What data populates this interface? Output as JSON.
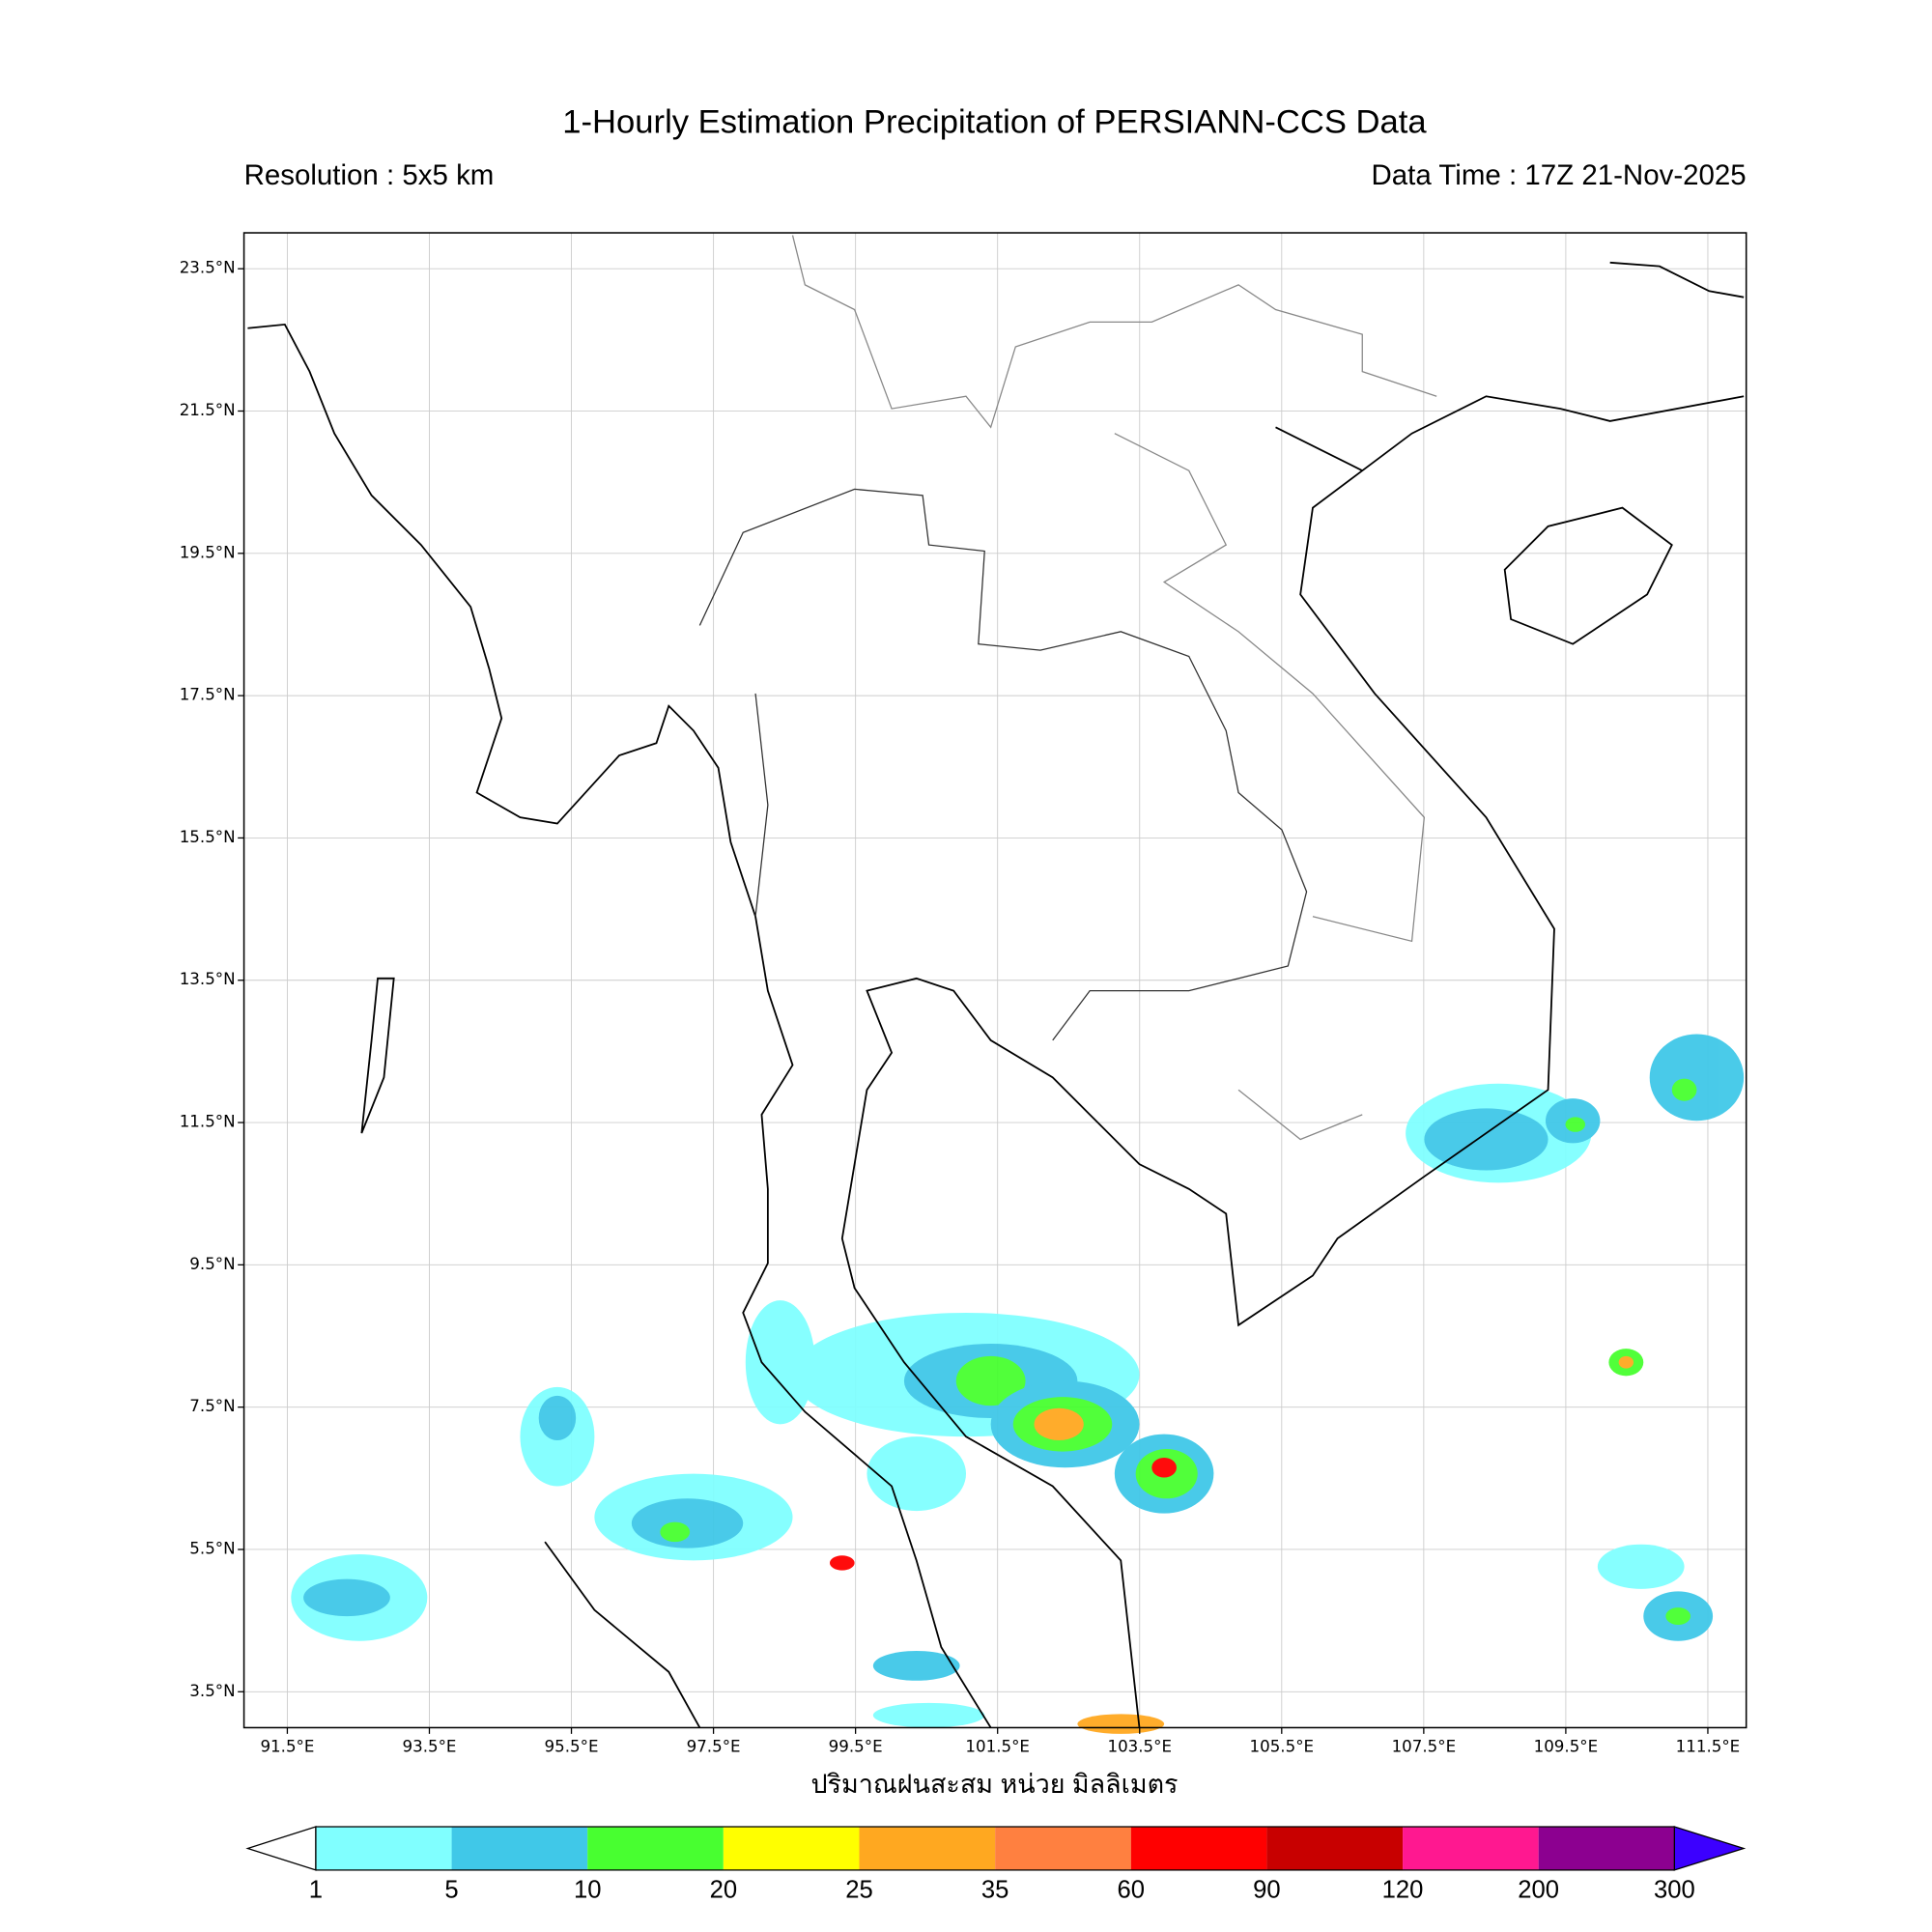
{
  "title": "1-Hourly Estimation Precipitation of PERSIANN-CCS Data",
  "resolution": "Resolution : 5x5 km",
  "data_time": "Data Time : 17Z 21-Nov-2025",
  "x_label": "ปริมาณฝนสะสม หน่วย มิลลิเมตร",
  "lon_ticks": [
    "91.5°E",
    "93.5°E",
    "95.5°E",
    "97.5°E",
    "99.5°E",
    "101.5°E",
    "103.5°E",
    "105.5°E",
    "107.5°E",
    "109.5°E",
    "111.5°E"
  ],
  "lat_ticks": [
    "23.5°N",
    "21.5°N",
    "19.5°N",
    "17.5°N",
    "15.5°N",
    "13.5°N",
    "11.5°N",
    "9.5°N",
    "7.5°N",
    "5.5°N",
    "3.5°N"
  ],
  "colorbar": {
    "levels": [
      1,
      5,
      10,
      20,
      25,
      35,
      60,
      90,
      120,
      200,
      300
    ],
    "colors": [
      "#80ffff",
      "#40c8e8",
      "#48ff30",
      "#ffff00",
      "#ffa820",
      "#ff8040",
      "#ff0000",
      "#c80000",
      "#ff1890",
      "#8c0090"
    ],
    "under_color": "#ffffff",
    "over_color": "#3c00ff"
  }
}
